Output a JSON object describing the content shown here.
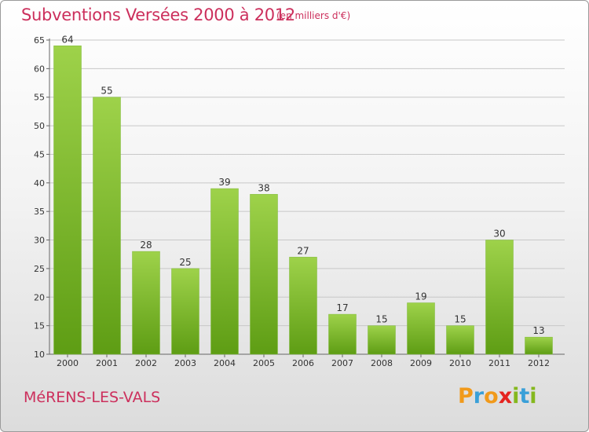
{
  "header": {
    "title": "Subventions Versées 2000 à 2012",
    "subtitle": "(en milliers d'€)"
  },
  "footer": {
    "commune": "MéRENS-LES-VALS",
    "logo_letters": [
      "P",
      "r",
      "o",
      "x",
      "i",
      "t",
      "i"
    ],
    "logo_colors": [
      "#f19a1b",
      "#3aa0d8",
      "#f19a1b",
      "#e52420",
      "#85b81e",
      "#3aa0d8",
      "#85b81e"
    ]
  },
  "colors": {
    "bar_light": "#9ed24a",
    "bar_dark": "#5e9d14",
    "title": "#cc2f5c",
    "grid": "#c8c8c8"
  },
  "chart_data": {
    "type": "bar",
    "title": "Subventions Versées 2000 à 2012",
    "subtitle": "(en milliers d'€)",
    "categories": [
      "2000",
      "2001",
      "2002",
      "2003",
      "2004",
      "2005",
      "2006",
      "2007",
      "2008",
      "2009",
      "2010",
      "2011",
      "2012"
    ],
    "values": [
      64,
      55,
      28,
      25,
      39,
      38,
      27,
      17,
      15,
      19,
      15,
      30,
      13
    ],
    "data_labels": [
      "64",
      "55",
      "28",
      "25",
      "39",
      "38",
      "27",
      "17",
      "15",
      "19",
      "15",
      "30",
      "13"
    ],
    "ylim": [
      10,
      65
    ],
    "yticks": [
      "10",
      "15",
      "20",
      "25",
      "30",
      "35",
      "40",
      "45",
      "50",
      "55",
      "60",
      "65"
    ],
    "grid": true,
    "xlabel": "",
    "ylabel": ""
  }
}
